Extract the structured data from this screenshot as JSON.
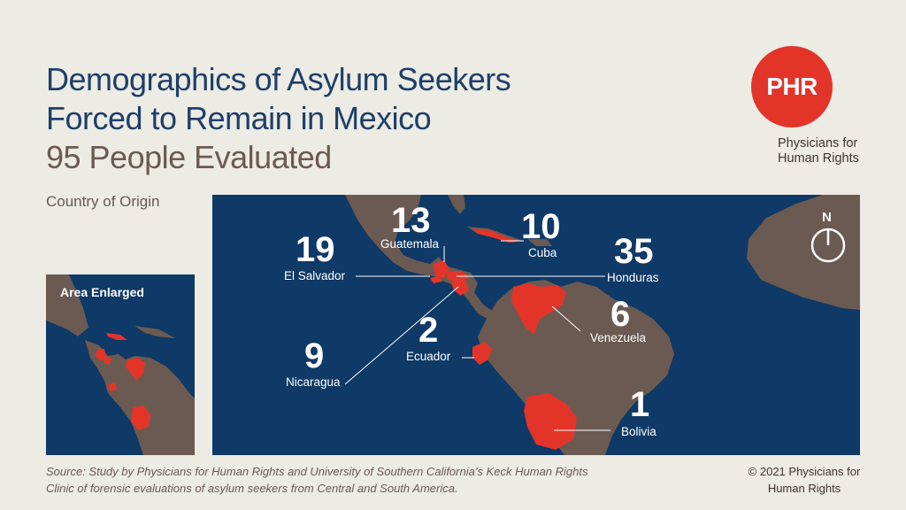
{
  "title": {
    "line1": "Demographics of Asylum Seekers",
    "line2": "Forced to Remain in Mexico",
    "subtitle": "95 People Evaluated"
  },
  "origin_label": "Country of Origin",
  "logo": {
    "text": "PHR",
    "org_name": "Physicians for Human Rights",
    "color": "#e3342a"
  },
  "inset": {
    "title": "Area Enlarged"
  },
  "compass": {
    "label": "N"
  },
  "colors": {
    "ocean": "#0f3966",
    "land": "#6b5a52",
    "highlight": "#e3342a",
    "title": "#1e3f69"
  },
  "countries": [
    {
      "name": "El Salvador",
      "count": "19"
    },
    {
      "name": "Guatemala",
      "count": "13"
    },
    {
      "name": "Cuba",
      "count": "10"
    },
    {
      "name": "Honduras",
      "count": "35"
    },
    {
      "name": "Venezuela",
      "count": "6"
    },
    {
      "name": "Ecuador",
      "count": "2"
    },
    {
      "name": "Nicaragua",
      "count": "9"
    },
    {
      "name": "Bolivia",
      "count": "1"
    }
  ],
  "source": "Source: Study by Physicians for Human Rights and University of Southern California’s Keck Human Rights Clinic of forensic evaluations of asylum seekers from Central and South America.",
  "copyright": "© 2021 Physicians for Human Rights"
}
